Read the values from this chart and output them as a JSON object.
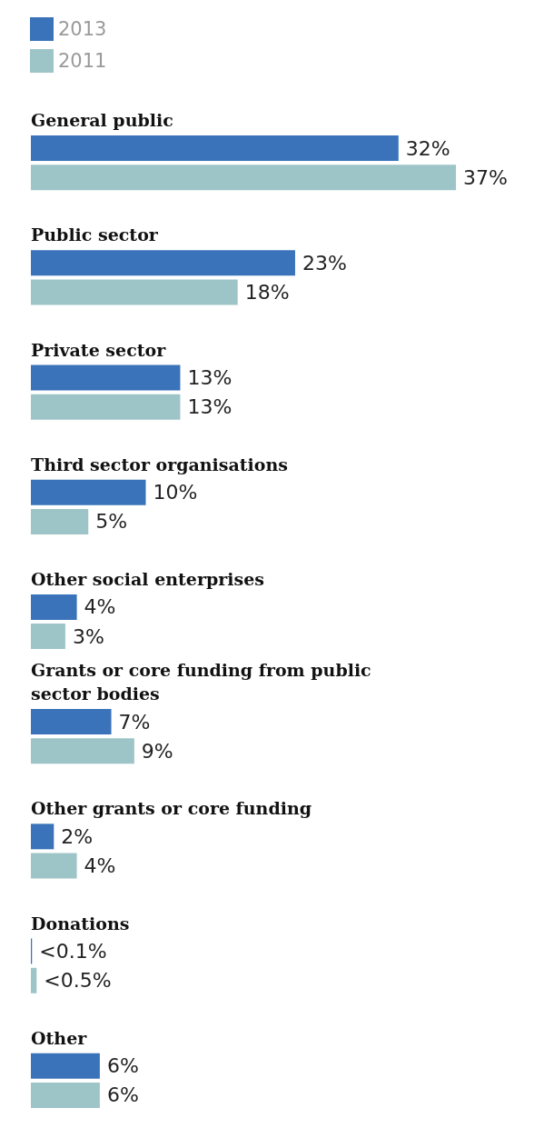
{
  "chart_data": {
    "type": "bar",
    "orientation": "horizontal",
    "legend": "top left",
    "categories": [
      "General public",
      "Public sector",
      "Private sector",
      "Third sector organisations",
      "Other social enterprises",
      "Grants or core funding from public sector bodies",
      "Other grants or core funding",
      "Donations",
      "Other"
    ],
    "series": [
      {
        "name": "2013",
        "color": "#3a73b9",
        "values": [
          32,
          23,
          13,
          10,
          4,
          7,
          2,
          0.1,
          6
        ],
        "value_labels": [
          "32%",
          "23%",
          "13%",
          "10%",
          "4%",
          "7%",
          "2%",
          "<0.1%",
          "6%"
        ]
      },
      {
        "name": "2011",
        "color": "#9dc5c8",
        "values": [
          37,
          18,
          13,
          5,
          3,
          9,
          4,
          0.5,
          6
        ],
        "value_labels": [
          "37%",
          "18%",
          "13%",
          "5%",
          "3%",
          "9%",
          "4%",
          "<0.5%",
          "6%"
        ]
      }
    ]
  }
}
